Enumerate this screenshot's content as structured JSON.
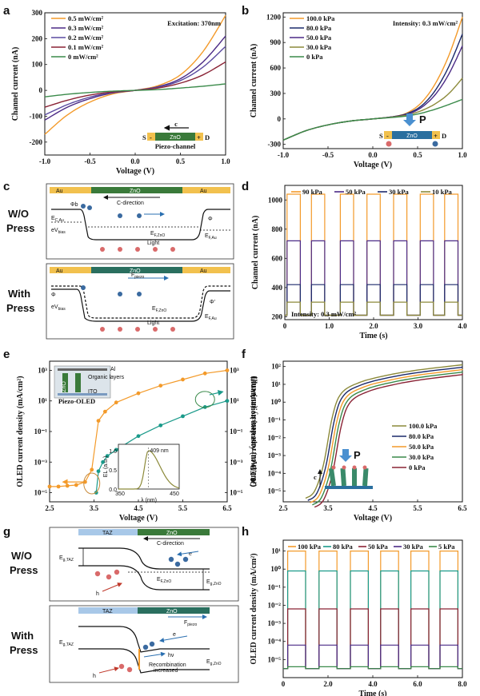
{
  "panels": {
    "a": "a",
    "b": "b",
    "c": "c",
    "d": "d",
    "e": "e",
    "f": "f",
    "g": "g",
    "h": "h"
  },
  "colors": {
    "orange": "#f39a2a",
    "purple": "#4b2a86",
    "navy": "#1c2a6b",
    "maroon": "#8a2335",
    "green": "#3a8a4a",
    "teal": "#1a9a8a",
    "olive": "#8c8a3a"
  },
  "chart_data": [
    {
      "id": "a",
      "type": "line",
      "xlabel": "Voltage (V)",
      "ylabel": "Channel current (nA)",
      "xlim": [
        -1.0,
        1.0
      ],
      "ylim": [
        -250,
        300
      ],
      "xticks": [
        "-1.0",
        "-0.5",
        "0.0",
        "0.5",
        "1.0"
      ],
      "yticks": [
        "-200",
        "-100",
        "0",
        "100",
        "200",
        "300"
      ],
      "annotation": "Excitation: 370nm",
      "series": [
        {
          "name": "0.5 mW/cm²",
          "color": "#f39a2a",
          "x": [
            -1.0,
            -0.75,
            -0.5,
            -0.25,
            0,
            0.25,
            0.5,
            0.75,
            1.0
          ],
          "y": [
            -170,
            -95,
            -45,
            -14,
            0,
            18,
            60,
            150,
            290
          ]
        },
        {
          "name": "0.3 mW/cm²",
          "color": "#4b2a86",
          "x": [
            -1.0,
            -0.75,
            -0.5,
            -0.25,
            0,
            0.25,
            0.5,
            0.75,
            1.0
          ],
          "y": [
            -115,
            -65,
            -32,
            -10,
            0,
            14,
            45,
            110,
            210
          ]
        },
        {
          "name": "0.2 mW/cm²",
          "color": "#5a4aa0",
          "x": [
            -1.0,
            -0.75,
            -0.5,
            -0.25,
            0,
            0.25,
            0.5,
            0.75,
            1.0
          ],
          "y": [
            -95,
            -55,
            -26,
            -8,
            0,
            12,
            38,
            90,
            170
          ]
        },
        {
          "name": "0.1 mW/cm²",
          "color": "#8a2335",
          "x": [
            -1.0,
            -0.75,
            -0.5,
            -0.25,
            0,
            0.25,
            0.5,
            0.75,
            1.0
          ],
          "y": [
            -65,
            -38,
            -18,
            -6,
            0,
            9,
            28,
            60,
            110
          ]
        },
        {
          "name": "0 mW/cm²",
          "color": "#3a8a4a",
          "x": [
            -1.0,
            -0.75,
            -0.5,
            -0.25,
            0,
            0.25,
            0.5,
            0.75,
            1.0
          ],
          "y": [
            -25,
            -15,
            -8,
            -3,
            0,
            3,
            9,
            16,
            25
          ]
        }
      ],
      "inset": {
        "arrow": "c",
        "s": "S",
        "d": "D",
        "minus": "-",
        "plus": "+",
        "material": "ZnO",
        "caption": "Piezo-channel"
      }
    },
    {
      "id": "b",
      "type": "line",
      "xlabel": "Voltage (V)",
      "ylabel": "Channel current (nA)",
      "xlim": [
        -1.0,
        1.0
      ],
      "ylim": [
        -350,
        1250
      ],
      "xticks": [
        "-1.0",
        "-0.5",
        "0.0",
        "0.5",
        "1.0"
      ],
      "yticks": [
        "-300",
        "0",
        "300",
        "600",
        "900",
        "1200"
      ],
      "annotation": "Intensity: 0.3 mW/cm²",
      "series": [
        {
          "name": "100.0 kPa",
          "color": "#f39a2a",
          "x": [
            -1.0,
            -0.75,
            -0.5,
            -0.25,
            0,
            0.25,
            0.4,
            0.55,
            0.7,
            0.85,
            1.0
          ],
          "y": [
            -250,
            -140,
            -70,
            -25,
            0,
            30,
            80,
            200,
            420,
            750,
            1200
          ]
        },
        {
          "name": "80.0 kPa",
          "color": "#1c2a6b",
          "x": [
            -1.0,
            -0.75,
            -0.5,
            -0.25,
            0,
            0.25,
            0.4,
            0.55,
            0.7,
            0.85,
            1.0
          ],
          "y": [
            -250,
            -140,
            -70,
            -25,
            0,
            30,
            70,
            160,
            340,
            620,
            1000
          ]
        },
        {
          "name": "50.0 kPa",
          "color": "#4b2a86",
          "x": [
            -1.0,
            -0.75,
            -0.5,
            -0.25,
            0,
            0.25,
            0.4,
            0.55,
            0.7,
            0.85,
            1.0
          ],
          "y": [
            -250,
            -140,
            -70,
            -25,
            0,
            28,
            60,
            140,
            290,
            530,
            860
          ]
        },
        {
          "name": "30.0 kPa",
          "color": "#8c8a3a",
          "x": [
            -1.0,
            -0.75,
            -0.5,
            -0.25,
            0,
            0.25,
            0.4,
            0.55,
            0.7,
            0.85,
            1.0
          ],
          "y": [
            -250,
            -140,
            -70,
            -25,
            0,
            25,
            50,
            100,
            180,
            300,
            480
          ]
        },
        {
          "name": "0 kPa",
          "color": "#3a8a4a",
          "x": [
            -1.0,
            -0.75,
            -0.5,
            -0.25,
            0,
            0.25,
            0.4,
            0.55,
            0.7,
            0.85,
            1.0
          ],
          "y": [
            -250,
            -140,
            -70,
            -25,
            0,
            20,
            38,
            70,
            115,
            170,
            230
          ]
        }
      ],
      "inset": {
        "arrow": "P",
        "s": "S",
        "d": "D",
        "minus": "-",
        "plus": "+",
        "material": "ZnO",
        "plus_circle": "+",
        "minus_circle": "-"
      }
    },
    {
      "id": "d",
      "type": "line",
      "xlabel": "Time (s)",
      "ylabel": "Channel current (nA)",
      "xlim": [
        0,
        4.0
      ],
      "ylim": [
        180,
        1100
      ],
      "xticks": [
        "0",
        "1.0",
        "2.0",
        "3.0",
        "4.0"
      ],
      "yticks": [
        "200",
        "400",
        "600",
        "800",
        "1000"
      ],
      "annotation": "Intensity: 0.3 mW/cm²",
      "legend": [
        "90 kPa",
        "50 kPa",
        "30 kPa",
        "10 kPa"
      ],
      "on_levels": [
        1040,
        720,
        420,
        300
      ],
      "off_level": 210,
      "pulses": [
        [
          0.05,
          0.35
        ],
        [
          0.6,
          0.9
        ],
        [
          1.25,
          1.55
        ],
        [
          1.85,
          2.15
        ],
        [
          2.45,
          2.75
        ],
        [
          3.05,
          3.35
        ],
        [
          3.6,
          3.9
        ]
      ],
      "series_colors": [
        "#f39a2a",
        "#4b2a86",
        "#1c2a6b",
        "#8c8a3a"
      ]
    },
    {
      "id": "e",
      "type": "scatter",
      "xlabel": "Voltage (V)",
      "ylabel": "OLED current density (mA/cm²)",
      "ylabel_right": "Illumination intensity (mW/cm²)",
      "xlim": [
        2.5,
        6.5
      ],
      "xticks": [
        "2.5",
        "3.5",
        "4.5",
        "5.5",
        "6.5"
      ],
      "yticks_left": [
        "10⁻⁵",
        "10⁻³",
        "10⁻¹",
        "10¹",
        "10³"
      ],
      "yticks_right": [
        "10⁻⁵",
        "10⁻³",
        "10⁻¹",
        "10¹",
        "10³"
      ],
      "series": [
        {
          "name": "OLED current density",
          "color": "#f39a2a",
          "x": [
            2.5,
            2.7,
            2.9,
            3.1,
            3.3,
            3.45,
            3.6,
            3.75,
            4.0,
            4.5,
            5.0,
            5.5,
            6.0,
            6.5
          ],
          "log_y": [
            -4.6,
            -4.6,
            -4.55,
            -4.5,
            -4.3,
            -3.5,
            -0.3,
            0.3,
            0.9,
            1.5,
            2.0,
            2.4,
            2.8,
            3.0
          ]
        },
        {
          "name": "Illumination intensity",
          "color": "#1a9a8a",
          "x": [
            3.55,
            3.6,
            3.7,
            3.8,
            4.0,
            4.5,
            5.0,
            5.5,
            6.0,
            6.5
          ],
          "log_y": [
            -5.0,
            -3.6,
            -3.0,
            -2.6,
            -2.2,
            -1.3,
            -0.6,
            0.0,
            0.6,
            1.0
          ]
        }
      ],
      "inset_device": {
        "al": "Al",
        "organic": "Organic layers",
        "ito": "ITO",
        "zno": "ZnO",
        "caption": "Piezo-OLED"
      },
      "inset_el": {
        "xlabel": "λ (nm)",
        "ylabel": "EL (a.u.)",
        "peak": "409 nm",
        "xticks": [
          "350",
          "450"
        ],
        "yticks": [
          "0.0",
          "0.5",
          "1.0"
        ]
      }
    },
    {
      "id": "f",
      "type": "line",
      "xlabel": "Voltage (V)",
      "ylabel": "OLED current density (mA/cm²)",
      "xlim": [
        2.5,
        6.5
      ],
      "xticks": [
        "2.5",
        "3.5",
        "4.5",
        "5.5",
        "6.5"
      ],
      "yticks": [
        "10⁻⁵",
        "10⁻⁴",
        "10⁻³",
        "10⁻²",
        "10⁻¹",
        "10⁰",
        "10¹",
        "10²"
      ],
      "series": [
        {
          "name": "100.0 kPa",
          "color": "#8c8a3a",
          "shift": 0.0
        },
        {
          "name": "80.0 kPa",
          "color": "#1c2a6b",
          "shift": 0.05
        },
        {
          "name": "50.0 kPa",
          "color": "#f39a2a",
          "shift": 0.1
        },
        {
          "name": "30.0 kPa",
          "color": "#3a8a4a",
          "shift": 0.15
        },
        {
          "name": "0 kPa",
          "color": "#8a2335",
          "shift": 0.2
        }
      ],
      "inset": {
        "arrow": "P",
        "c": "c"
      }
    },
    {
      "id": "h",
      "type": "line",
      "xlabel": "Time (s)",
      "ylabel": "OLED current density (mA/cm²)",
      "xlim": [
        0,
        8.0
      ],
      "xticks": [
        "0",
        "2.0",
        "4.0",
        "6.0",
        "8.0"
      ],
      "yticks": [
        "10⁻⁵",
        "10⁻⁴",
        "10⁻³",
        "10⁻²",
        "10⁻¹",
        "10⁰",
        "10¹"
      ],
      "legend": [
        "100 kPa",
        "80 kPa",
        "50 kPa",
        "30 kPa",
        "5 kPa"
      ],
      "on_levels_log": [
        1.0,
        -0.1,
        -2.2,
        -4.2,
        -5.4
      ],
      "off_level_log": -5.5,
      "pulses": [
        [
          0.2,
          1.0
        ],
        [
          1.6,
          2.4
        ],
        [
          3.0,
          3.8
        ],
        [
          4.35,
          5.15
        ],
        [
          5.7,
          6.5
        ],
        [
          7.0,
          7.8
        ]
      ],
      "series_colors": [
        "#f39a2a",
        "#1a9a8a",
        "#8a2335",
        "#4b2a86",
        "#3a8a4a"
      ]
    }
  ],
  "diagram_c": {
    "top_label_1": "W/O",
    "top_label_2": "Press",
    "bot_label_1": "With",
    "bot_label_2": "Press",
    "au": "Au",
    "zno": "ZnO",
    "direction": "C-direction",
    "fpiezo": "F",
    "fpiezo_sub": "piezo",
    "phi": "Φ",
    "phi_prime": "Φ'",
    "phi_b": "Φb",
    "ec": "E",
    "ec_sub": "C,Au",
    "ev": "eV",
    "ev_sub": "bias",
    "ef_zno": "E",
    "ef_zno_sub": "F,ZnO",
    "ef_au": "E",
    "ef_au_sub": "F,Au",
    "light": "Light"
  },
  "diagram_g": {
    "top_label_1": "W/O",
    "top_label_2": "Press",
    "bot_label_1": "With",
    "bot_label_2": "Press",
    "taz": "TAZ",
    "zno": "ZnO",
    "direction": "C-direction",
    "fpiezo": "F",
    "fpiezo_sub": "piezo",
    "eg_taz": "E",
    "eg_taz_sub": "g,TAZ",
    "eg_zno": "E",
    "eg_zno_sub": "g,ZnO",
    "ef_zno": "E",
    "ef_zno_sub": "F,ZnO",
    "e": "e",
    "h": "h",
    "hv": "hν",
    "recomb_1": "Recombination",
    "recomb_2": "increased"
  }
}
